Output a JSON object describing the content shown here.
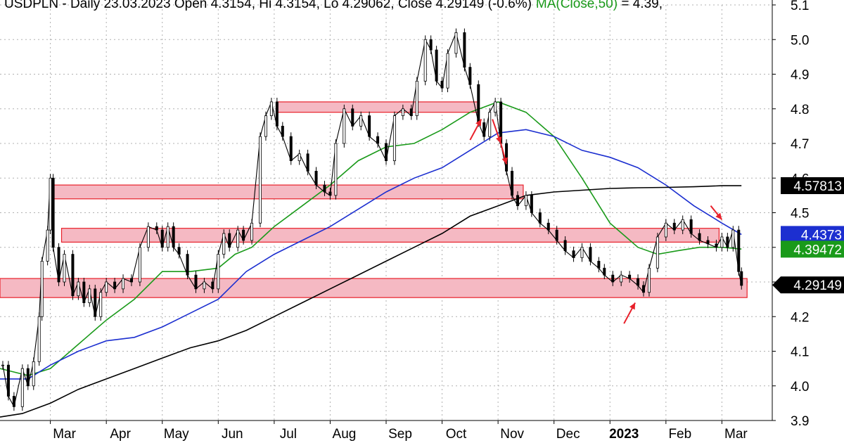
{
  "header": {
    "prefix": "USDPLN - Daily 23.03.2023 Open 4.3154, Hi 4.3154, Lo 4.29062, Close 4.29149 (-0.6%)",
    "ma_text": "MA(Close,50)",
    "suffix": " = 4.39,"
  },
  "chart_data": {
    "type": "line",
    "subtype": "candlestick-ohlc",
    "symbol": "USDPLN",
    "interval": "Daily",
    "date": "23.03.2023",
    "ohlc_last": {
      "open": 4.3154,
      "high": 4.3154,
      "low": 4.29062,
      "close": 4.29149,
      "change": "-0.6%"
    },
    "ylim": [
      3.9,
      5.1
    ],
    "y_ticks": [
      "3.9",
      "4.0",
      "4.1",
      "4.2",
      "4.3",
      "4.4",
      "4.5",
      "4.6",
      "4.7",
      "4.8",
      "4.9",
      "5.0",
      "5.1"
    ],
    "x_ticks": [
      {
        "label": "Mar",
        "x": 1
      },
      {
        "label": "Apr",
        "x": 2
      },
      {
        "label": "May",
        "x": 3
      },
      {
        "label": "Jun",
        "x": 4
      },
      {
        "label": "Jul",
        "x": 5
      },
      {
        "label": "Aug",
        "x": 6
      },
      {
        "label": "Sep",
        "x": 7
      },
      {
        "label": "Oct",
        "x": 8
      },
      {
        "label": "Nov",
        "x": 9
      },
      {
        "label": "Dec",
        "x": 10
      },
      {
        "label": "2023",
        "x": 11,
        "bold": true
      },
      {
        "label": "Feb",
        "x": 12
      },
      {
        "label": "Mar",
        "x": 13
      }
    ],
    "xlim": [
      0.1,
      13.9
    ],
    "price": [
      [
        0.15,
        4.06
      ],
      [
        0.25,
        3.97
      ],
      [
        0.35,
        3.94
      ],
      [
        0.5,
        4.05
      ],
      [
        0.6,
        4.0
      ],
      [
        0.7,
        4.07
      ],
      [
        0.8,
        4.2
      ],
      [
        0.85,
        4.36
      ],
      [
        0.95,
        4.45
      ],
      [
        1.0,
        4.6
      ],
      [
        1.05,
        4.4
      ],
      [
        1.15,
        4.3
      ],
      [
        1.25,
        4.38
      ],
      [
        1.4,
        4.26
      ],
      [
        1.5,
        4.3
      ],
      [
        1.6,
        4.24
      ],
      [
        1.7,
        4.28
      ],
      [
        1.8,
        4.2
      ],
      [
        1.9,
        4.27
      ],
      [
        2.0,
        4.3
      ],
      [
        2.15,
        4.28
      ],
      [
        2.3,
        4.31
      ],
      [
        2.45,
        4.3
      ],
      [
        2.6,
        4.4
      ],
      [
        2.75,
        4.46
      ],
      [
        2.9,
        4.45
      ],
      [
        3.0,
        4.4
      ],
      [
        3.1,
        4.46
      ],
      [
        3.2,
        4.4
      ],
      [
        3.3,
        4.38
      ],
      [
        3.45,
        4.32
      ],
      [
        3.6,
        4.28
      ],
      [
        3.75,
        4.3
      ],
      [
        3.9,
        4.28
      ],
      [
        4.0,
        4.38
      ],
      [
        4.1,
        4.44
      ],
      [
        4.2,
        4.4
      ],
      [
        4.35,
        4.45
      ],
      [
        4.45,
        4.42
      ],
      [
        4.6,
        4.47
      ],
      [
        4.75,
        4.72
      ],
      [
        4.85,
        4.78
      ],
      [
        4.95,
        4.82
      ],
      [
        5.05,
        4.75
      ],
      [
        5.15,
        4.72
      ],
      [
        5.3,
        4.65
      ],
      [
        5.45,
        4.67
      ],
      [
        5.6,
        4.62
      ],
      [
        5.75,
        4.58
      ],
      [
        5.9,
        4.56
      ],
      [
        6.0,
        4.55
      ],
      [
        6.1,
        4.7
      ],
      [
        6.25,
        4.8
      ],
      [
        6.4,
        4.75
      ],
      [
        6.55,
        4.78
      ],
      [
        6.7,
        4.72
      ],
      [
        6.85,
        4.7
      ],
      [
        7.0,
        4.65
      ],
      [
        7.15,
        4.78
      ],
      [
        7.3,
        4.8
      ],
      [
        7.45,
        4.78
      ],
      [
        7.55,
        4.88
      ],
      [
        7.7,
        5.0
      ],
      [
        7.8,
        4.97
      ],
      [
        7.9,
        4.88
      ],
      [
        8.0,
        4.86
      ],
      [
        8.1,
        4.96
      ],
      [
        8.25,
        5.02
      ],
      [
        8.4,
        4.92
      ],
      [
        8.5,
        4.87
      ],
      [
        8.65,
        4.76
      ],
      [
        8.75,
        4.72
      ],
      [
        8.85,
        4.79
      ],
      [
        8.95,
        4.82
      ],
      [
        9.05,
        4.7
      ],
      [
        9.15,
        4.62
      ],
      [
        9.25,
        4.55
      ],
      [
        9.35,
        4.52
      ],
      [
        9.5,
        4.55
      ],
      [
        9.6,
        4.5
      ],
      [
        9.75,
        4.47
      ],
      [
        9.9,
        4.45
      ],
      [
        10.05,
        4.42
      ],
      [
        10.2,
        4.39
      ],
      [
        10.35,
        4.37
      ],
      [
        10.5,
        4.4
      ],
      [
        10.65,
        4.36
      ],
      [
        10.8,
        4.34
      ],
      [
        10.9,
        4.32
      ],
      [
        11.05,
        4.3
      ],
      [
        11.2,
        4.32
      ],
      [
        11.35,
        4.31
      ],
      [
        11.5,
        4.29
      ],
      [
        11.6,
        4.27
      ],
      [
        11.7,
        4.34
      ],
      [
        11.85,
        4.43
      ],
      [
        12.0,
        4.47
      ],
      [
        12.15,
        4.45
      ],
      [
        12.3,
        4.48
      ],
      [
        12.45,
        4.44
      ],
      [
        12.6,
        4.42
      ],
      [
        12.75,
        4.41
      ],
      [
        12.9,
        4.4
      ],
      [
        13.0,
        4.43
      ],
      [
        13.1,
        4.4
      ],
      [
        13.2,
        4.45
      ],
      [
        13.3,
        4.33
      ],
      [
        13.35,
        4.29
      ]
    ],
    "series": [
      {
        "key": "ma50",
        "color": "#1a9a1a",
        "points": [
          [
            0.1,
            4.05
          ],
          [
            0.6,
            4.03
          ],
          [
            1.0,
            4.05
          ],
          [
            1.5,
            4.12
          ],
          [
            2.0,
            4.19
          ],
          [
            2.5,
            4.25
          ],
          [
            3.0,
            4.33
          ],
          [
            3.5,
            4.33
          ],
          [
            4.0,
            4.34
          ],
          [
            4.3,
            4.38
          ],
          [
            4.6,
            4.4
          ],
          [
            5.0,
            4.46
          ],
          [
            5.5,
            4.52
          ],
          [
            6.0,
            4.58
          ],
          [
            6.5,
            4.65
          ],
          [
            7.0,
            4.69
          ],
          [
            7.5,
            4.7
          ],
          [
            8.0,
            4.74
          ],
          [
            8.5,
            4.79
          ],
          [
            9.0,
            4.82
          ],
          [
            9.5,
            4.79
          ],
          [
            10.0,
            4.72
          ],
          [
            10.5,
            4.6
          ],
          [
            11.0,
            4.47
          ],
          [
            11.5,
            4.4
          ],
          [
            11.85,
            4.38
          ],
          [
            12.2,
            4.39
          ],
          [
            12.6,
            4.4
          ],
          [
            13.0,
            4.4
          ],
          [
            13.35,
            4.395
          ]
        ]
      },
      {
        "key": "ma100",
        "color": "#1c2fd0",
        "points": [
          [
            0.1,
            4.02
          ],
          [
            0.6,
            4.02
          ],
          [
            1.0,
            4.06
          ],
          [
            1.5,
            4.1
          ],
          [
            2.0,
            4.13
          ],
          [
            2.5,
            4.14
          ],
          [
            3.0,
            4.17
          ],
          [
            3.5,
            4.21
          ],
          [
            4.0,
            4.25
          ],
          [
            4.5,
            4.33
          ],
          [
            5.0,
            4.38
          ],
          [
            5.5,
            4.42
          ],
          [
            6.0,
            4.46
          ],
          [
            6.5,
            4.51
          ],
          [
            7.0,
            4.56
          ],
          [
            7.5,
            4.6
          ],
          [
            8.0,
            4.63
          ],
          [
            8.5,
            4.68
          ],
          [
            9.0,
            4.73
          ],
          [
            9.5,
            4.74
          ],
          [
            10.0,
            4.72
          ],
          [
            10.5,
            4.68
          ],
          [
            11.0,
            4.66
          ],
          [
            11.5,
            4.63
          ],
          [
            12.0,
            4.58
          ],
          [
            12.5,
            4.52
          ],
          [
            13.0,
            4.47
          ],
          [
            13.35,
            4.437
          ]
        ]
      },
      {
        "key": "ma200",
        "color": "#000000",
        "points": [
          [
            0.1,
            3.91
          ],
          [
            0.5,
            3.92
          ],
          [
            1.0,
            3.95
          ],
          [
            1.5,
            3.99
          ],
          [
            2.0,
            4.02
          ],
          [
            2.5,
            4.05
          ],
          [
            3.0,
            4.08
          ],
          [
            3.5,
            4.11
          ],
          [
            4.0,
            4.13
          ],
          [
            4.5,
            4.16
          ],
          [
            5.0,
            4.2
          ],
          [
            5.5,
            4.24
          ],
          [
            6.0,
            4.28
          ],
          [
            6.5,
            4.32
          ],
          [
            7.0,
            4.36
          ],
          [
            7.5,
            4.4
          ],
          [
            8.0,
            4.44
          ],
          [
            8.5,
            4.49
          ],
          [
            9.0,
            4.52
          ],
          [
            9.5,
            4.55
          ],
          [
            10.0,
            4.56
          ],
          [
            10.5,
            4.565
          ],
          [
            11.0,
            4.57
          ],
          [
            11.5,
            4.572
          ],
          [
            12.0,
            4.573
          ],
          [
            12.5,
            4.575
          ],
          [
            13.0,
            4.578
          ],
          [
            13.35,
            4.578
          ]
        ]
      }
    ],
    "zones": [
      {
        "x1": 5.05,
        "x2": 8.65,
        "y1": 4.82,
        "y2": 4.79
      },
      {
        "x1": 1.05,
        "x2": 9.45,
        "y1": 4.58,
        "y2": 4.54
      },
      {
        "x1": 1.2,
        "x2": 12.95,
        "y1": 4.455,
        "y2": 4.415
      },
      {
        "x1": 0.1,
        "x2": 13.45,
        "y1": 4.31,
        "y2": 4.255
      }
    ],
    "arrows": [
      {
        "x1": 8.5,
        "y1": 4.71,
        "x2": 8.7,
        "y2": 4.77
      },
      {
        "x1": 8.9,
        "y1": 4.77,
        "x2": 9.05,
        "y2": 4.7
      },
      {
        "x1": 9.05,
        "y1": 4.7,
        "x2": 9.15,
        "y2": 4.64
      },
      {
        "x1": 11.25,
        "y1": 4.18,
        "x2": 11.45,
        "y2": 4.24
      },
      {
        "x1": 12.8,
        "y1": 4.52,
        "x2": 13.0,
        "y2": 4.48
      }
    ],
    "value_labels": [
      {
        "text": "4.57813",
        "y": 4.57813,
        "bg": "#000000",
        "fg": "#ffffff",
        "arrow": false
      },
      {
        "text": "4.4373",
        "y": 4.4373,
        "bg": "#1c2fd0",
        "fg": "#ffffff",
        "arrow": false
      },
      {
        "text": "4.39472",
        "y": 4.39472,
        "bg": "#1a9a1a",
        "fg": "#ffffff",
        "arrow": false
      },
      {
        "text": "4.29149",
        "y": 4.29149,
        "bg": "#000000",
        "fg": "#ffffff",
        "arrow": true
      }
    ],
    "colors": {
      "zone_fill": "#f5b9c3",
      "zone_stroke": "#e8202a",
      "arrow": "#e8202a",
      "price": "#000000",
      "grid": "#b0b0b0"
    },
    "grid": true
  }
}
